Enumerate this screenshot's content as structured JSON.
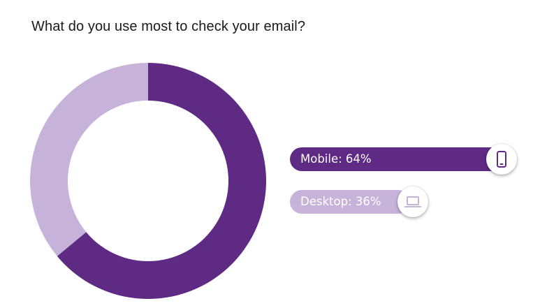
{
  "title": "What do you use most to check your email?",
  "colors": {
    "primary": "#5e2a84",
    "secondary": "#c7b3d9",
    "background": "#ffffff"
  },
  "chart_data": {
    "type": "pie",
    "title": "What do you use most to check your email?",
    "slices": [
      {
        "label": "Mobile",
        "value": 64,
        "color": "#5e2a84",
        "icon": "smartphone-icon"
      },
      {
        "label": "Desktop",
        "value": 36,
        "color": "#c7b3d9",
        "icon": "laptop-icon"
      }
    ]
  },
  "legend": {
    "mobile_label": "Mobile: 64%",
    "desktop_label": "Desktop: 36%"
  }
}
